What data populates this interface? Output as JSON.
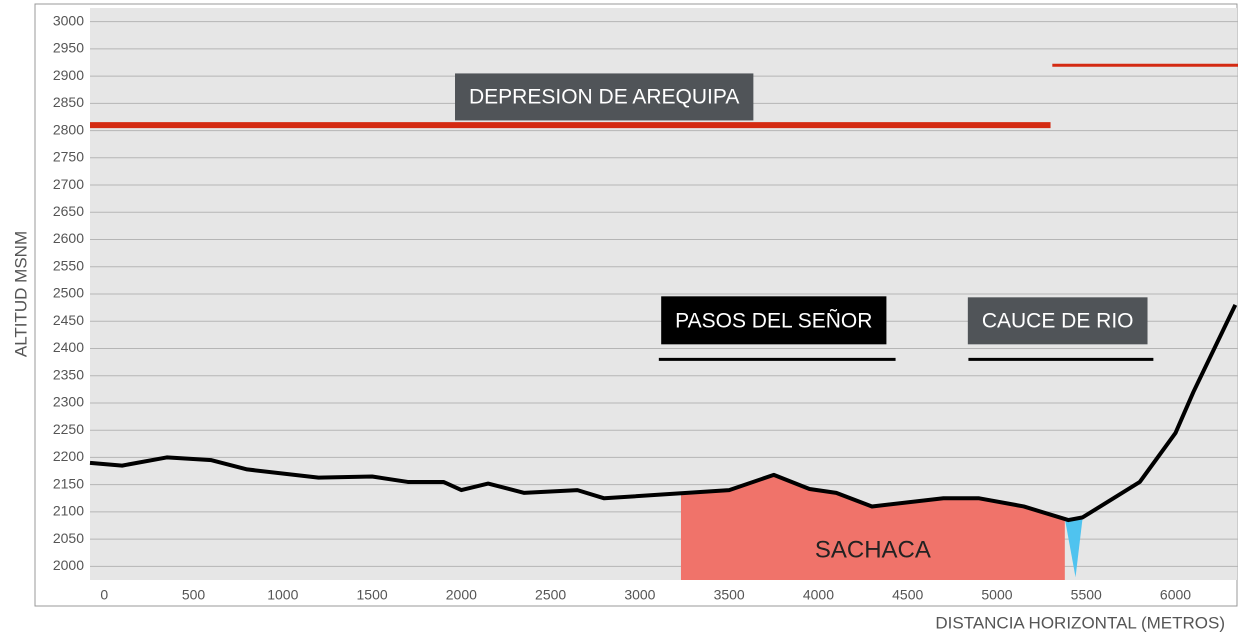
{
  "chart_data": {
    "type": "line",
    "xlabel": "DISTANCIA HORIZONTAL (METROS)",
    "ylabel": "ALTITUD MSNM",
    "xlim": [
      -80,
      6350
    ],
    "ylim": [
      1975,
      3025
    ],
    "xticks": [
      0,
      500,
      1000,
      1500,
      2000,
      2500,
      3000,
      3500,
      4000,
      4500,
      5000,
      5500,
      6000
    ],
    "yticks": [
      2000,
      2050,
      2100,
      2150,
      2200,
      2250,
      2300,
      2350,
      2400,
      2450,
      2500,
      2550,
      2600,
      2650,
      2700,
      2750,
      2800,
      2850,
      2900,
      2950,
      3000
    ],
    "grid": true,
    "series": [
      {
        "color": "#000000",
        "x": [
          -80,
          100,
          350,
          600,
          800,
          1200,
          1500,
          1700,
          1900,
          2000,
          2150,
          2350,
          2650,
          2800,
          3500,
          3750,
          3950,
          4100,
          4300,
          4700,
          4900,
          5150,
          5400,
          5480,
          5800,
          6000,
          6100,
          6335
        ],
        "values": [
          2190,
          2185,
          2200,
          2195,
          2178,
          2163,
          2165,
          2155,
          2155,
          2140,
          2152,
          2135,
          2140,
          2125,
          2140,
          2168,
          2142,
          2135,
          2110,
          2125,
          2125,
          2110,
          2085,
          2090,
          2155,
          2245,
          2320,
          2480
        ]
      }
    ],
    "areas": [
      {
        "name": "SACHACA",
        "color": "#f0736a",
        "x": [
          3230,
          3500,
          3750,
          3950,
          4100,
          4300,
          4700,
          4900,
          5150,
          5380
        ],
        "values": [
          2135,
          2140,
          2168,
          2142,
          2135,
          2110,
          2125,
          2125,
          2110,
          2088
        ]
      },
      {
        "color": "#4fc3ef",
        "x": [
          5380,
          5420,
          5480,
          5440
        ],
        "values": [
          2088,
          2090,
          2090,
          1980
        ]
      }
    ],
    "annotations": [
      {
        "text": "DEPRESION DE AREQUIPA",
        "x": 2800,
        "y": 2860,
        "box": "#505458",
        "line_color": "#d42a12",
        "line_x": [
          -80,
          5300
        ],
        "line_y": 2810
      },
      {
        "text": "PASOS DEL SEÑOR",
        "x": 3750,
        "y": 2449,
        "box": "#000000",
        "line_color": "#000000",
        "line_x": [
          3106,
          4432
        ],
        "line_y": 2380
      },
      {
        "text": "CAUCE DE RIO",
        "x": 5340,
        "y": 2449,
        "box": "#505458",
        "line_color": "#000000",
        "line_x": [
          4840,
          5876
        ],
        "line_y": 2380
      },
      {
        "line_color": "#d42a12",
        "line_x": [
          5310,
          6350
        ],
        "line_y": 2920
      }
    ]
  }
}
